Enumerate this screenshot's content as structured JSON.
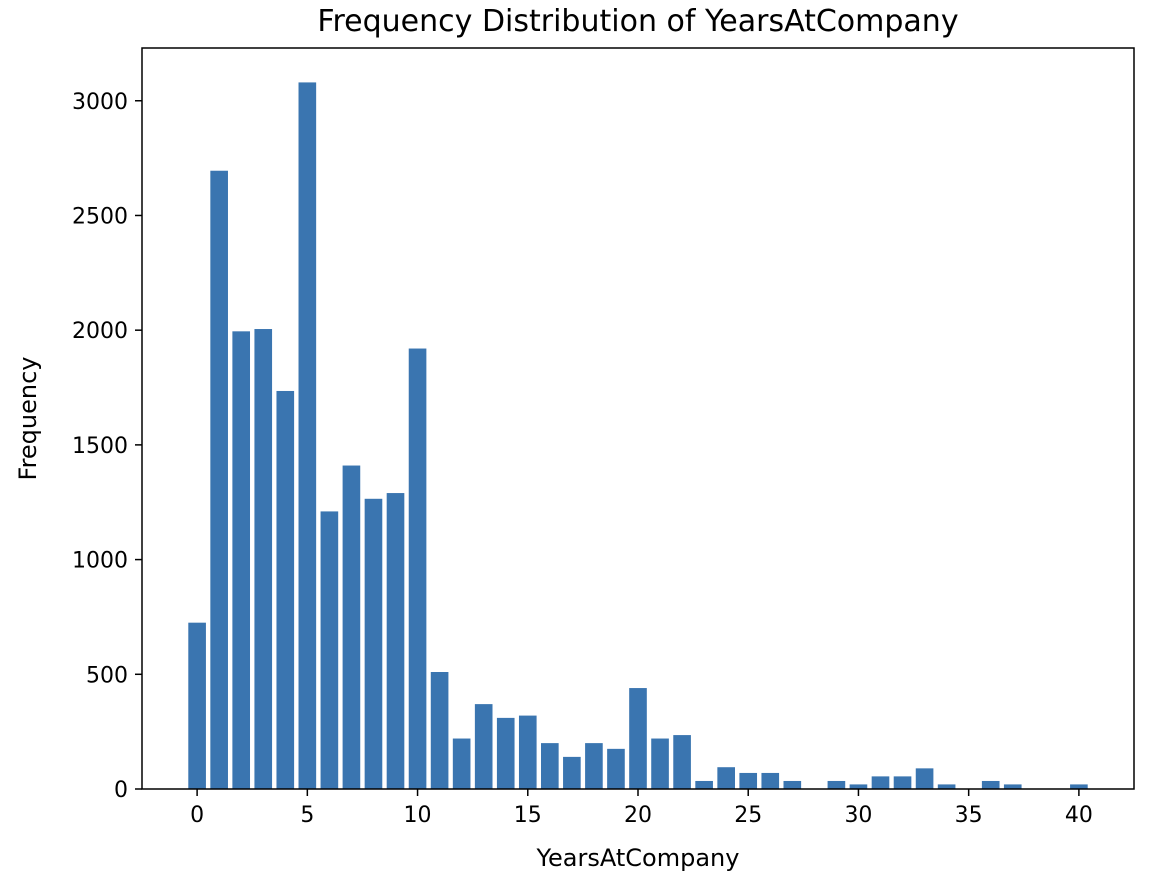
{
  "chart_data": {
    "type": "bar",
    "title": "Frequency Distribution of YearsAtCompany",
    "xlabel": "YearsAtCompany",
    "ylabel": "Frequency",
    "x": [
      0,
      1,
      2,
      3,
      4,
      5,
      6,
      7,
      8,
      9,
      10,
      11,
      12,
      13,
      14,
      15,
      16,
      17,
      18,
      19,
      20,
      21,
      22,
      23,
      24,
      25,
      26,
      27,
      29,
      30,
      31,
      32,
      33,
      34,
      36,
      37,
      40
    ],
    "values": [
      725,
      2695,
      1995,
      2005,
      1735,
      3080,
      1210,
      1410,
      1265,
      1290,
      1920,
      510,
      220,
      370,
      310,
      320,
      200,
      140,
      200,
      175,
      440,
      220,
      235,
      35,
      95,
      70,
      70,
      35,
      35,
      20,
      55,
      55,
      90,
      20,
      35,
      20,
      20
    ],
    "xlim": [
      -2.5,
      42.5
    ],
    "ylim": [
      0,
      3230
    ],
    "xticks": [
      0,
      5,
      10,
      15,
      20,
      25,
      30,
      35,
      40
    ],
    "yticks": [
      0,
      500,
      1000,
      1500,
      2000,
      2500,
      3000
    ],
    "bar_color": "#3a75b0",
    "grid": false,
    "legend": "none"
  }
}
